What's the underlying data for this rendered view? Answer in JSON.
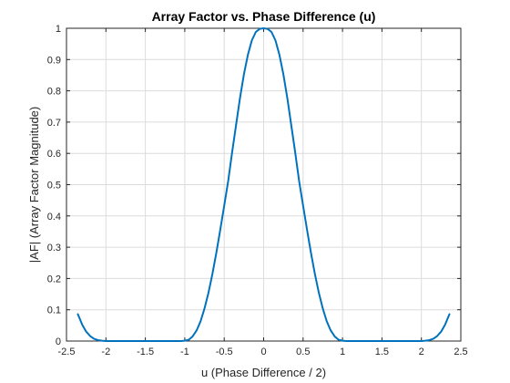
{
  "chart_data": {
    "type": "line",
    "title": "Array Factor vs. Phase Difference (u)",
    "xlabel": "u (Phase Difference / 2)",
    "ylabel": "|AF| (Array Factor Magnitude)",
    "xlim": [
      -2.5,
      2.5
    ],
    "ylim": [
      0,
      1
    ],
    "xticks": [
      "-2.5",
      "-2",
      "-1.5",
      "-1",
      "-0.5",
      "0",
      "0.5",
      "1",
      "1.5",
      "2",
      "2.5"
    ],
    "yticks": [
      "0",
      "0.1",
      "0.2",
      "0.3",
      "0.4",
      "0.5",
      "0.6",
      "0.7",
      "0.8",
      "0.9",
      "1"
    ],
    "grid": true,
    "line_color": "#0072BD",
    "series": [
      {
        "x": [
          -2.356,
          -2.3,
          -2.25,
          -2.2,
          -2.15,
          -2.1,
          -2.05,
          -2.0,
          -1.9,
          -1.8,
          -1.7,
          -1.6,
          -1.5,
          -1.4,
          -1.3,
          -1.2,
          -1.1,
          -1.05,
          -1.0,
          -0.95,
          -0.9,
          -0.85,
          -0.8,
          -0.75,
          -0.7,
          -0.65,
          -0.6,
          -0.55,
          -0.5,
          -0.45,
          -0.4,
          -0.35,
          -0.3,
          -0.25,
          -0.2,
          -0.15,
          -0.1,
          -0.05,
          0.0,
          0.05,
          0.1,
          0.15,
          0.2,
          0.25,
          0.3,
          0.35,
          0.4,
          0.45,
          0.5,
          0.55,
          0.6,
          0.65,
          0.7,
          0.75,
          0.8,
          0.85,
          0.9,
          0.95,
          1.0,
          1.05,
          1.1,
          1.2,
          1.3,
          1.4,
          1.5,
          1.6,
          1.7,
          1.8,
          1.9,
          2.0,
          2.05,
          2.1,
          2.15,
          2.2,
          2.25,
          2.3,
          2.356
        ],
        "y": [
          0.086,
          0.052,
          0.03,
          0.016,
          0.007,
          0.003,
          0.001,
          0.0,
          0.0,
          0.0,
          0.0,
          0.0,
          0.0,
          0.0,
          0.0,
          0.0,
          0.0,
          0.0,
          0.001,
          0.004,
          0.015,
          0.034,
          0.063,
          0.104,
          0.154,
          0.214,
          0.282,
          0.356,
          0.433,
          0.511,
          0.603,
          0.69,
          0.777,
          0.853,
          0.915,
          0.961,
          0.988,
          0.998,
          1.0,
          0.998,
          0.988,
          0.961,
          0.915,
          0.853,
          0.777,
          0.69,
          0.603,
          0.511,
          0.433,
          0.356,
          0.282,
          0.214,
          0.154,
          0.104,
          0.063,
          0.034,
          0.015,
          0.004,
          0.001,
          0.0,
          0.0,
          0.0,
          0.0,
          0.0,
          0.0,
          0.0,
          0.0,
          0.0,
          0.0,
          0.0,
          0.001,
          0.003,
          0.007,
          0.016,
          0.03,
          0.052,
          0.086
        ]
      }
    ]
  }
}
